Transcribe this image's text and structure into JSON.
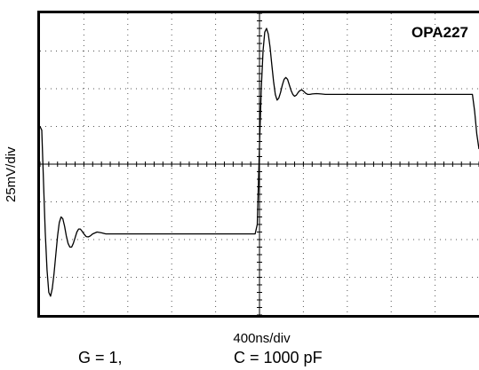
{
  "chart_data": {
    "type": "line",
    "title": "OPA227",
    "xlabel": "400ns/div",
    "ylabel": "25mV/div",
    "xlim": [
      0,
      10
    ],
    "ylim": [
      -4,
      4
    ],
    "grid": true,
    "x_divisions": 10,
    "y_divisions": 8,
    "series": [
      {
        "x": [
          0,
          0.04,
          0.08,
          0.12,
          0.16,
          0.2,
          0.24,
          0.28,
          0.32,
          0.36,
          0.4,
          0.44,
          0.48,
          0.52,
          0.56,
          0.6,
          0.64,
          0.68,
          0.72,
          0.76,
          0.8,
          0.84,
          0.88,
          0.92,
          0.96,
          1.0,
          1.05,
          1.1,
          1.15,
          1.2,
          1.3,
          1.4,
          1.5,
          1.6,
          1.8,
          2.0,
          2.5,
          3.0,
          3.5,
          4.0,
          4.5,
          4.9,
          4.95,
          5.0,
          5.04,
          5.08,
          5.12,
          5.16,
          5.2,
          5.24,
          5.28,
          5.32,
          5.36,
          5.4,
          5.44,
          5.48,
          5.52,
          5.56,
          5.6,
          5.64,
          5.68,
          5.72,
          5.76,
          5.8,
          5.84,
          5.88,
          5.92,
          5.96,
          6.0,
          6.05,
          6.1,
          6.15,
          6.2,
          6.3,
          6.4,
          6.5,
          6.6,
          6.8,
          7.0,
          7.5,
          8.0,
          8.5,
          9.0,
          9.5,
          9.85,
          9.9,
          9.95,
          10.0
        ],
        "y": [
          1.0,
          0.9,
          -0.5,
          -1.8,
          -2.8,
          -3.4,
          -3.5,
          -3.3,
          -2.9,
          -2.4,
          -1.9,
          -1.55,
          -1.4,
          -1.45,
          -1.65,
          -1.9,
          -2.1,
          -2.2,
          -2.2,
          -2.1,
          -1.95,
          -1.8,
          -1.72,
          -1.72,
          -1.78,
          -1.85,
          -1.92,
          -1.93,
          -1.9,
          -1.85,
          -1.8,
          -1.82,
          -1.85,
          -1.85,
          -1.85,
          -1.85,
          -1.85,
          -1.85,
          -1.85,
          -1.85,
          -1.85,
          -1.85,
          -1.6,
          0.5,
          2.0,
          3.0,
          3.5,
          3.6,
          3.45,
          3.1,
          2.65,
          2.2,
          1.85,
          1.7,
          1.75,
          1.9,
          2.1,
          2.25,
          2.3,
          2.25,
          2.1,
          1.95,
          1.85,
          1.8,
          1.83,
          1.9,
          1.95,
          1.97,
          1.94,
          1.88,
          1.85,
          1.85,
          1.86,
          1.87,
          1.86,
          1.85,
          1.85,
          1.85,
          1.85,
          1.85,
          1.85,
          1.85,
          1.85,
          1.85,
          1.85,
          1.4,
          0.8,
          0.4
        ]
      }
    ]
  },
  "conditions": {
    "gain": "G = 1,",
    "capacitance": "C = 1000 pF"
  }
}
